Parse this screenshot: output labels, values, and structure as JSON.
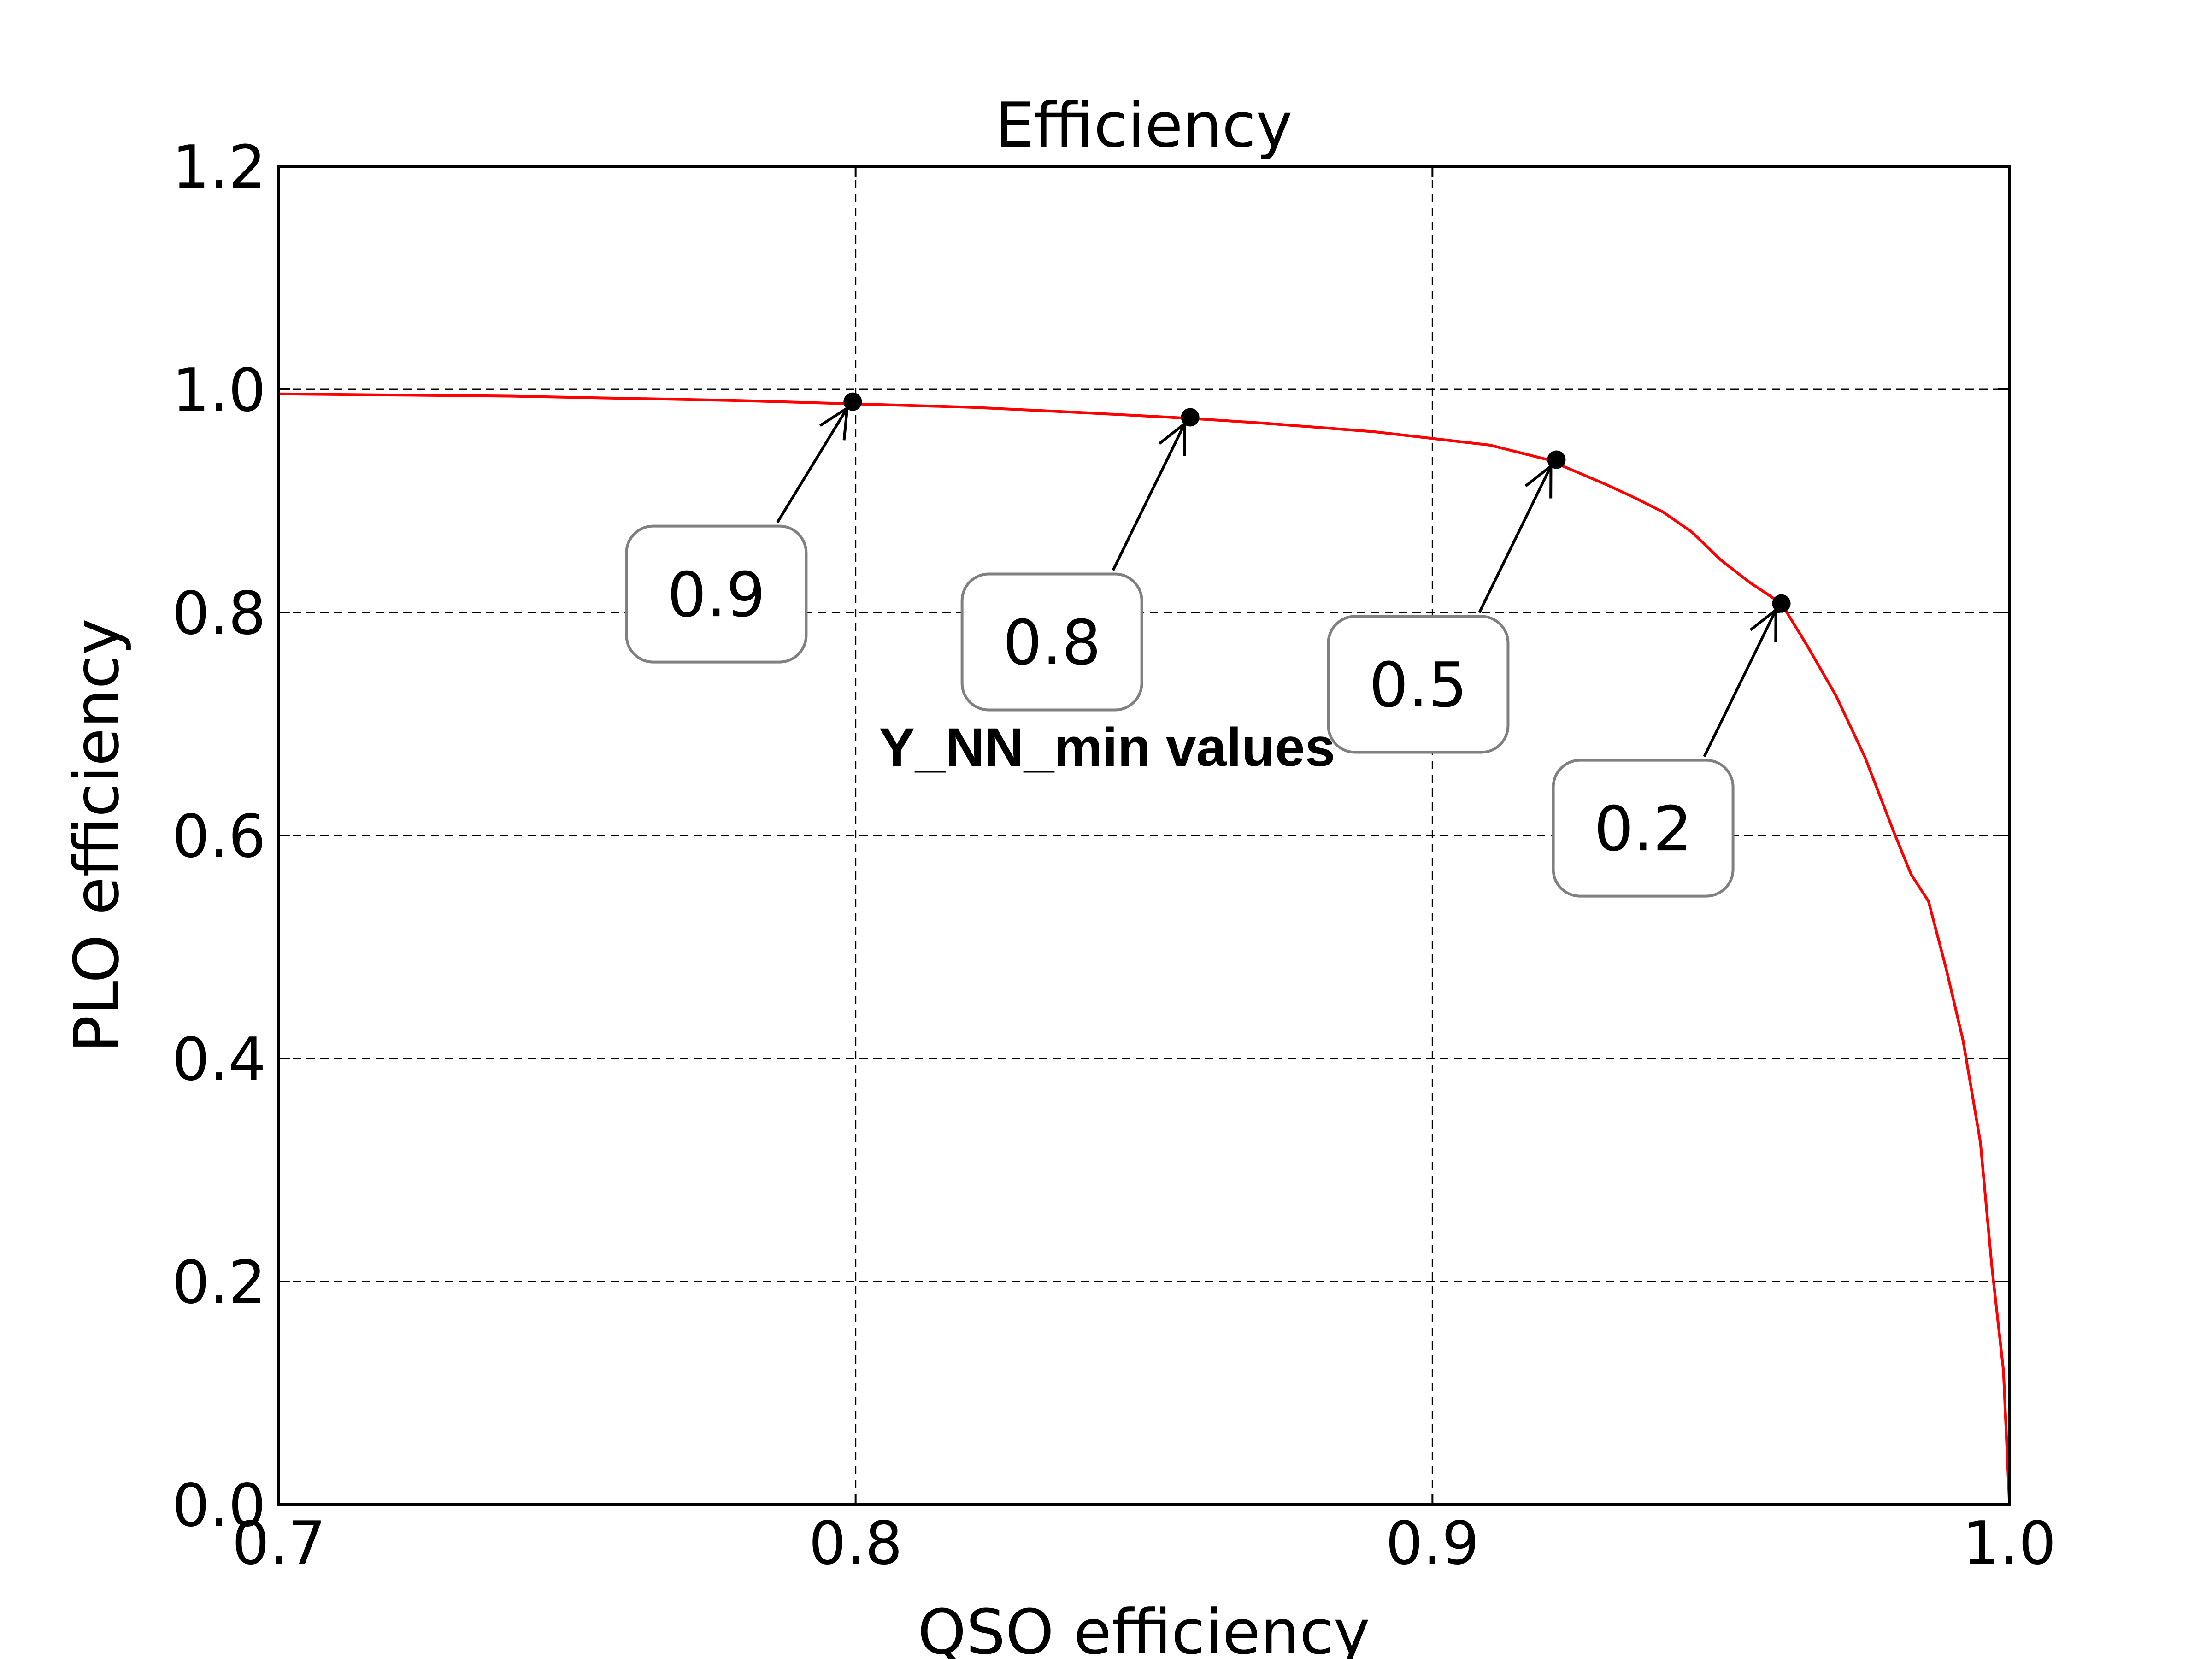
{
  "chart_data": {
    "type": "line",
    "title": "Efficiency",
    "xlabel": "QSO efficiency",
    "ylabel": "PLO efficiency",
    "xlim": [
      0.7,
      1.0
    ],
    "ylim": [
      0.0,
      1.2
    ],
    "xticks": [
      0.7,
      0.8,
      0.9,
      1.0
    ],
    "xtick_labels": [
      "0.7",
      "0.8",
      "0.9",
      "1.0"
    ],
    "yticks": [
      0.0,
      0.2,
      0.4,
      0.6,
      0.8,
      1.0,
      1.2
    ],
    "ytick_labels": [
      "0.0",
      "0.2",
      "0.4",
      "0.6",
      "0.8",
      "1.0",
      "1.2"
    ],
    "grid": true,
    "series": [
      {
        "color": "#ff0000",
        "x": [
          0.7,
          0.72,
          0.74,
          0.76,
          0.78,
          0.8,
          0.82,
          0.84,
          0.858,
          0.87,
          0.88,
          0.89,
          0.9,
          0.91,
          0.92,
          0.925,
          0.93,
          0.935,
          0.94,
          0.945,
          0.95,
          0.955,
          0.9605,
          0.965,
          0.97,
          0.975,
          0.98,
          0.983,
          0.986,
          0.989,
          0.992,
          0.995,
          0.997,
          0.999,
          1.0
        ],
        "y": [
          0.996,
          0.995,
          0.994,
          0.992,
          0.99,
          0.987,
          0.984,
          0.979,
          0.974,
          0.97,
          0.966,
          0.962,
          0.956,
          0.95,
          0.937,
          0.926,
          0.915,
          0.903,
          0.89,
          0.872,
          0.847,
          0.827,
          0.808,
          0.77,
          0.725,
          0.67,
          0.603,
          0.565,
          0.541,
          0.482,
          0.416,
          0.325,
          0.213,
          0.12,
          0.005
        ]
      }
    ],
    "markers": [
      {
        "x": 0.7995,
        "y": 0.989,
        "label": "0.9"
      },
      {
        "x": 0.858,
        "y": 0.975,
        "label": "0.8"
      },
      {
        "x": 0.9215,
        "y": 0.937,
        "label": "0.5"
      },
      {
        "x": 0.9605,
        "y": 0.808,
        "label": "0.2"
      }
    ],
    "annotation": "Y_NN_min values"
  }
}
